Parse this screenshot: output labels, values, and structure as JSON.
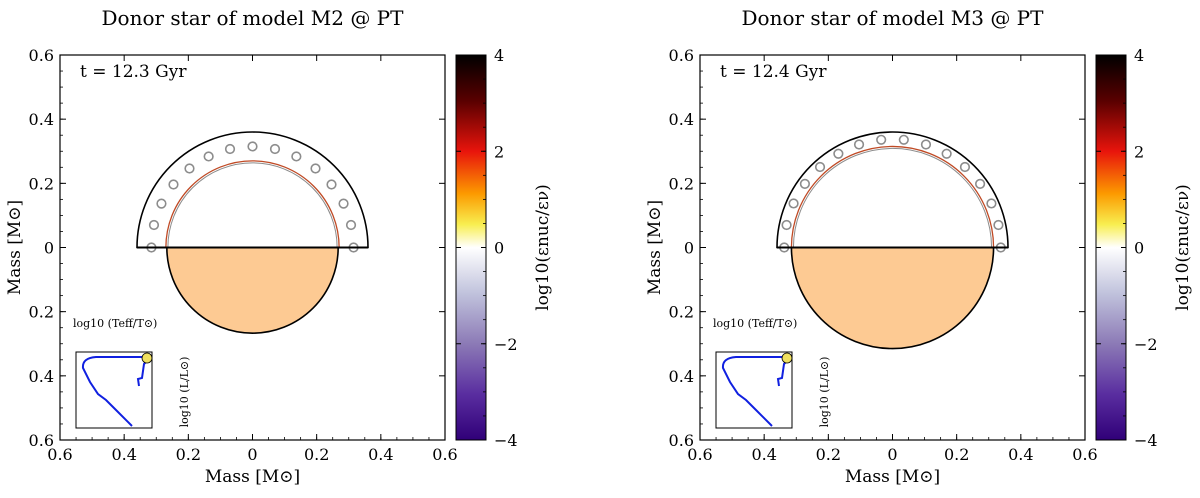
{
  "chart_data": [
    {
      "type": "kippenhahn-disc",
      "title": "Donor star of model M2 @ PT",
      "time_label": "t = 12.3 Gyr",
      "xlabel": "Mass [M⊙]",
      "ylabel": "Mass [M⊙]",
      "xlim": [
        -0.6,
        0.6
      ],
      "ylim": [
        -0.6,
        0.6
      ],
      "x_ticks": [
        "0.6",
        "0.4",
        "0.2",
        "0",
        "0.2",
        "0.4",
        "0.6"
      ],
      "y_ticks": [
        "0.6",
        "0.4",
        "0.2",
        "0",
        "0.2",
        "0.4",
        "0.6"
      ],
      "total_mass": 0.36,
      "convective_inner_radius": 0.27,
      "core_mass_lower": 0.267,
      "core_color": "#fdca93",
      "colorbar": {
        "label": "log10(εnuc/εν)",
        "ticks": [
          "4",
          "2",
          "0",
          "−2",
          "−4"
        ],
        "range": [
          -4,
          4
        ]
      },
      "inset": {
        "xlabel": "log10 (Teff/T⊙)",
        "ylabel": "log10 (L/L⊙)"
      }
    },
    {
      "type": "kippenhahn-disc",
      "title": "Donor star of model M3 @ PT",
      "time_label": "t = 12.4 Gyr",
      "xlabel": "Mass [M⊙]",
      "ylabel": "Mass [M⊙]",
      "xlim": [
        -0.6,
        0.6
      ],
      "ylim": [
        -0.6,
        0.6
      ],
      "x_ticks": [
        "0.6",
        "0.4",
        "0.2",
        "0",
        "0.2",
        "0.4",
        "0.6"
      ],
      "y_ticks": [
        "0.6",
        "0.4",
        "0.2",
        "0",
        "0.2",
        "0.4",
        "0.6"
      ],
      "total_mass": 0.36,
      "convective_inner_radius": 0.315,
      "core_mass_lower": 0.315,
      "core_color": "#fdca93",
      "colorbar": {
        "label": "log10(εnuc/εν)",
        "ticks": [
          "4",
          "2",
          "0",
          "−2",
          "−4"
        ],
        "range": [
          -4,
          4
        ]
      },
      "inset": {
        "xlabel": "log10 (Teff/T⊙)",
        "ylabel": "log10 (L/L⊙)"
      }
    }
  ]
}
